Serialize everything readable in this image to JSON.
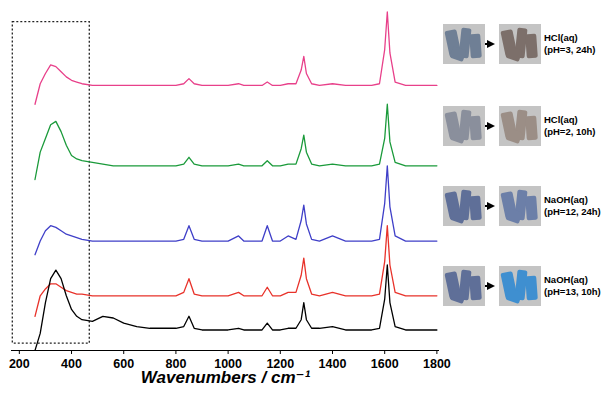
{
  "chart_data": {
    "type": "line",
    "x_label": "Wavenumbers / cm⁻¹",
    "xlim": [
      170,
      1810
    ],
    "xticks": [
      200,
      400,
      600,
      800,
      1000,
      1200,
      1400,
      1600,
      1800
    ],
    "ylim": [
      0,
      100
    ],
    "tick_labels": "x",
    "grid": false,
    "x": [
      260,
      280,
      300,
      320,
      340,
      360,
      380,
      400,
      420,
      440,
      480,
      520,
      560,
      600,
      650,
      700,
      750,
      800,
      830,
      850,
      870,
      900,
      950,
      1000,
      1040,
      1060,
      1100,
      1130,
      1150,
      1170,
      1200,
      1230,
      1260,
      1280,
      1290,
      1300,
      1320,
      1350,
      1400,
      1450,
      1500,
      1550,
      1580,
      1600,
      1610,
      1620,
      1640,
      1680,
      1720,
      1760,
      1800
    ],
    "series": [
      {
        "color": "#e8408a",
        "values": [
          72,
          78,
          81,
          83.5,
          83,
          81.5,
          80,
          79,
          78.5,
          78,
          77.5,
          77.5,
          77.5,
          77.5,
          77.5,
          77.5,
          77.5,
          77.5,
          78,
          79.5,
          78,
          77.5,
          77.5,
          77.5,
          78,
          77.5,
          77.5,
          77.5,
          78.5,
          77.5,
          77.5,
          78,
          78,
          82,
          86,
          81,
          78,
          77.5,
          78,
          77.5,
          77.5,
          77.5,
          78,
          88,
          99,
          87,
          78.5,
          77.5,
          77.5,
          77.5,
          77.5
        ]
      },
      {
        "color": "#1a9a3a",
        "values": [
          50,
          58,
          62,
          66,
          67,
          64,
          60,
          57,
          56,
          55.5,
          55,
          54.5,
          54,
          54,
          54,
          54,
          54,
          54,
          54.5,
          56.5,
          54.5,
          54,
          54,
          54,
          54.5,
          54,
          54,
          54,
          55.5,
          54,
          54,
          54.5,
          54.5,
          59,
          63,
          58,
          54.5,
          54,
          54.5,
          54,
          54,
          54,
          54.5,
          62,
          72,
          61,
          55,
          54,
          54,
          54,
          54
        ]
      },
      {
        "color": "#3f3fc8",
        "values": [
          28,
          32,
          35,
          36.5,
          36,
          35,
          34,
          33.5,
          33,
          32.5,
          32,
          32,
          32,
          32,
          32,
          32,
          32,
          32,
          32.5,
          36.5,
          32.5,
          32,
          32,
          32,
          33.5,
          32,
          32,
          32,
          36.5,
          32,
          32,
          33.5,
          32.5,
          38,
          42.5,
          37,
          32.5,
          32,
          33.5,
          32,
          32,
          32,
          32.5,
          43,
          54,
          42,
          33.5,
          32,
          32,
          32,
          32
        ]
      },
      {
        "color": "#e8322a",
        "values": [
          10,
          16,
          18,
          19.5,
          19.5,
          18.5,
          17.5,
          17,
          16.5,
          16.5,
          16,
          16,
          16,
          16,
          16,
          16,
          16,
          16,
          17,
          21,
          16.5,
          16,
          16,
          16,
          17,
          16,
          16,
          16,
          18.5,
          16,
          16,
          17,
          17,
          22,
          27,
          21,
          16.5,
          16,
          17,
          16,
          16,
          16,
          16.5,
          26,
          36.5,
          25,
          17,
          16,
          16,
          16,
          16
        ]
      },
      {
        "color": "#000000",
        "values": [
          0,
          5,
          14,
          21,
          23.5,
          21,
          16,
          12,
          10,
          9,
          8.5,
          10,
          9.5,
          8,
          7,
          6.5,
          6.5,
          6.5,
          7,
          10,
          6.5,
          6,
          6,
          6,
          6.5,
          6,
          6,
          6,
          8,
          6,
          6,
          6.5,
          6.5,
          9,
          14,
          9,
          6.5,
          6.5,
          7,
          6,
          6,
          6,
          6.5,
          15,
          25,
          14,
          7,
          6,
          6,
          6,
          6
        ]
      }
    ],
    "highlight_region": {
      "x": [
        175,
        470
      ],
      "y": [
        2,
        96
      ]
    },
    "annotations": [
      {
        "text": "HCl(aq)",
        "subtext": "(pH=3, 24h)"
      },
      {
        "text": "HCl(aq)",
        "subtext": "(pH=2, 10h)"
      },
      {
        "text": "NaOH(aq)",
        "subtext": "(pH=12, 24h)"
      },
      {
        "text": "NaOH(aq)",
        "subtext": "(pH=13, 10h)"
      }
    ]
  }
}
